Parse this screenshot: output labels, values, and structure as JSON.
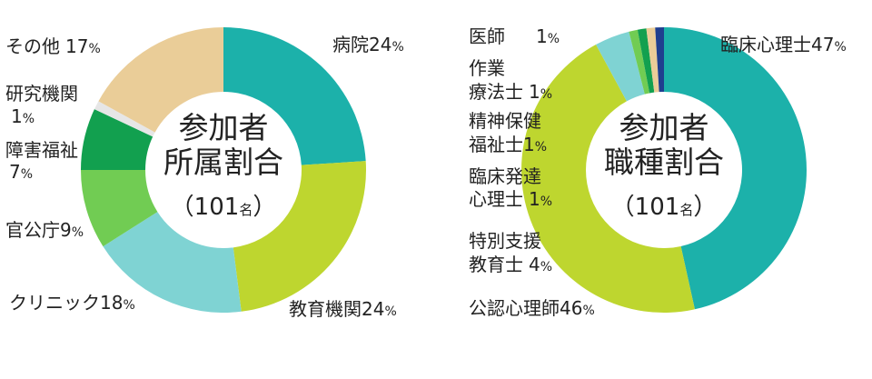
{
  "chart_data": [
    {
      "type": "pie",
      "donut": true,
      "center": {
        "line1": "参加者",
        "line2": "所属割合",
        "count": "101",
        "unit": "名"
      },
      "slices": [
        {
          "label": "病院",
          "value": 24,
          "pct_text": "%",
          "color": "#1cb1aa"
        },
        {
          "label": "教育機関",
          "value": 24,
          "pct_text": "%",
          "color": "#bed62f"
        },
        {
          "label": "クリニック",
          "value": 18,
          "pct_text": "%",
          "color": "#7fd3d3"
        },
        {
          "label": "官公庁",
          "value": 9,
          "pct_text": "%",
          "color": "#71cc53"
        },
        {
          "label": "障害福祉",
          "value": 7,
          "pct_text": "%",
          "color": "#12a04f"
        },
        {
          "label": "研究機関",
          "value": 1,
          "pct_text": "%",
          "color": "#e6e6e6"
        },
        {
          "label": "その他",
          "value": 17,
          "pct_text": "%",
          "color": "#eacd98"
        }
      ]
    },
    {
      "type": "pie",
      "donut": true,
      "center": {
        "line1": "参加者",
        "line2": "職種割合",
        "count": "101",
        "unit": "名"
      },
      "slices": [
        {
          "label": "臨床心理士",
          "value": 47,
          "pct_text": "%",
          "color": "#1cb1aa"
        },
        {
          "label": "公認心理師",
          "value": 46,
          "pct_text": "%",
          "color": "#bed62f"
        },
        {
          "label": "特別支援教育士",
          "value": 4,
          "pct_text": "%",
          "color": "#7fd3d3"
        },
        {
          "label": "臨床発達心理士",
          "value": 1,
          "pct_text": "%",
          "color": "#71cc53"
        },
        {
          "label": "精神保健福祉士",
          "value": 1,
          "pct_text": "%",
          "color": "#12a04f"
        },
        {
          "label": "作業療法士",
          "value": 1,
          "pct_text": "%",
          "color": "#eacd98"
        },
        {
          "label": "医師",
          "value": 1,
          "pct_text": "%",
          "color": "#1f3f8f"
        }
      ]
    }
  ],
  "labels": {
    "left": {
      "hospital": {
        "name": "病院",
        "value": "24"
      },
      "education": {
        "name": "教育機関",
        "value": "24"
      },
      "clinic": {
        "name": "クリニック",
        "value": "18"
      },
      "government": {
        "name": "官公庁",
        "value": "9"
      },
      "welfare": {
        "name_line1": "障害福祉",
        "value": "7"
      },
      "research": {
        "name": "研究機関",
        "value": "1"
      },
      "other": {
        "name": "その他",
        "value": "17"
      }
    },
    "right": {
      "cp": {
        "name": "臨床心理士",
        "value": "47"
      },
      "licensed": {
        "name": "公認心理師",
        "value": "46"
      },
      "special": {
        "line1": "特別支援",
        "line2": "教育士",
        "value": "4"
      },
      "dev": {
        "line1": "臨床発達",
        "line2": "心理士",
        "value": "1"
      },
      "psw": {
        "line1": "精神保健",
        "line2": "福祉士",
        "value": "1"
      },
      "ot": {
        "line1": "作業",
        "line2": "療法士",
        "value": "1"
      },
      "doctor": {
        "name": "医師",
        "value": "1"
      }
    },
    "percent_sign": "%"
  }
}
